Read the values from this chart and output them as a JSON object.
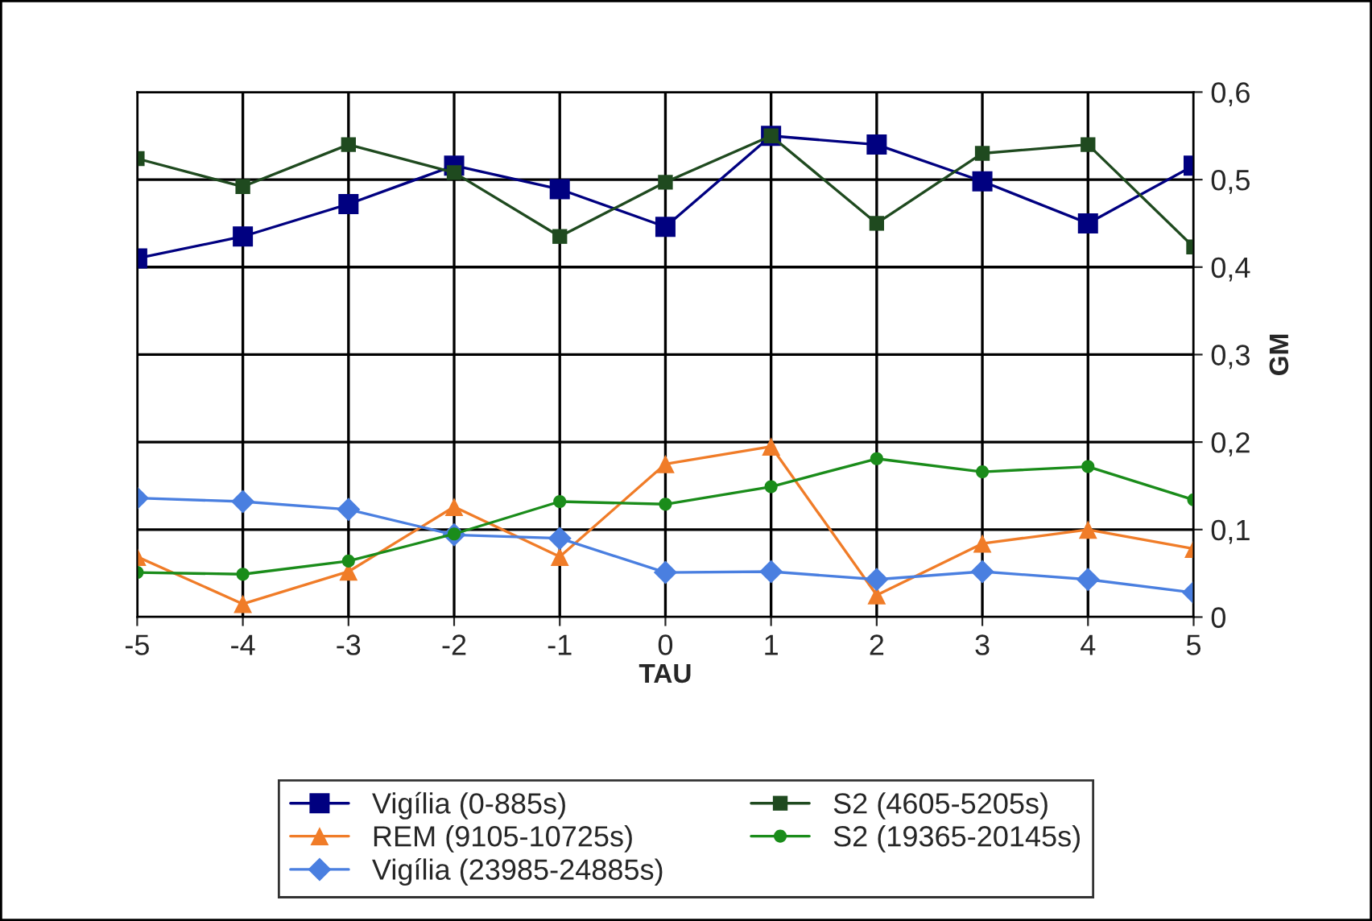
{
  "chart_data": {
    "type": "line",
    "xlabel": "TAU",
    "ylabel": "GM",
    "x": [
      -5,
      -4,
      -3,
      -2,
      -1,
      0,
      1,
      2,
      3,
      4,
      5
    ],
    "xlim": [
      -5,
      5
    ],
    "xticks": [
      -5,
      -4,
      -3,
      -2,
      -1,
      0,
      1,
      2,
      3,
      4,
      5
    ],
    "ylim": [
      0,
      0.6
    ],
    "yticks": [
      {
        "value": 0,
        "label": "0"
      },
      {
        "value": 0.1,
        "label": "0,1"
      },
      {
        "value": 0.2,
        "label": "0,2"
      },
      {
        "value": 0.3,
        "label": "0,3"
      },
      {
        "value": 0.4,
        "label": "0,4"
      },
      {
        "value": 0.5,
        "label": "0,5"
      },
      {
        "value": 0.6,
        "label": "0,6"
      }
    ],
    "grid": true,
    "legend": "bottom",
    "series": [
      {
        "name": "Vigília (0-885s)",
        "color": "#000080",
        "marker": "square",
        "values": [
          0.41,
          0.435,
          0.472,
          0.516,
          0.489,
          0.446,
          0.55,
          0.54,
          0.498,
          0.45,
          0.516
        ]
      },
      {
        "name": "REM (9105-10725s)",
        "color": "#f07c28",
        "marker": "triangle",
        "values": [
          0.069,
          0.015,
          0.052,
          0.126,
          0.069,
          0.175,
          0.195,
          0.025,
          0.084,
          0.1,
          0.078
        ]
      },
      {
        "name": "Vigília (23985-24885s)",
        "color": "#4a7fe0",
        "marker": "diamond",
        "values": [
          0.136,
          0.132,
          0.123,
          0.094,
          0.09,
          0.051,
          0.052,
          0.043,
          0.052,
          0.043,
          0.028
        ]
      },
      {
        "name": "S2 (4605-5205s)",
        "color": "#1f4a1f",
        "marker": "square",
        "values": [
          0.524,
          0.492,
          0.54,
          0.508,
          0.435,
          0.497,
          0.55,
          0.45,
          0.53,
          0.54,
          0.423
        ]
      },
      {
        "name": "S2 (19365-20145s)",
        "color": "#1a8c1a",
        "marker": "circle",
        "values": [
          0.051,
          0.049,
          0.064,
          0.095,
          0.132,
          0.129,
          0.149,
          0.181,
          0.166,
          0.172,
          0.134
        ]
      }
    ]
  }
}
